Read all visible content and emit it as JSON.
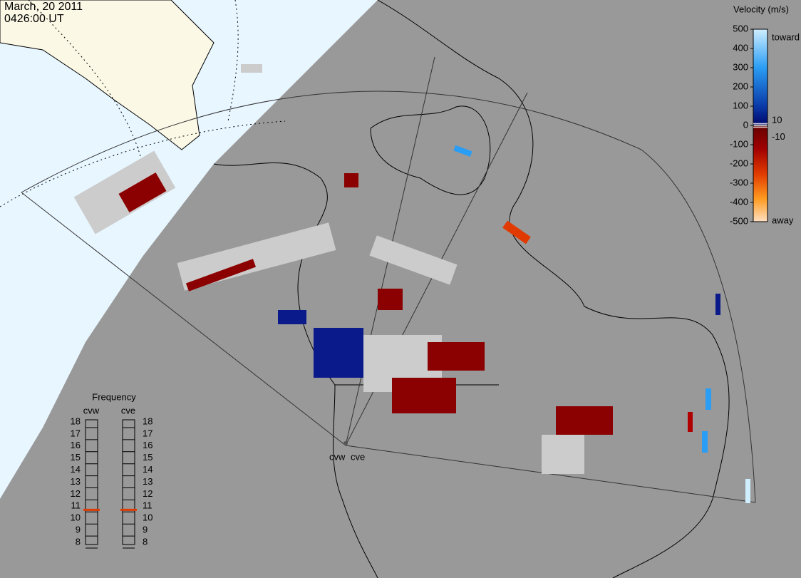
{
  "header": {
    "date": "March, 20 2011",
    "time": "0426:00 UT"
  },
  "velocity_scale": {
    "title": "Velocity (m/s)",
    "lim": [
      -500,
      500
    ],
    "ticks": [
      500,
      400,
      300,
      200,
      100,
      0,
      -100,
      -200,
      -300,
      -400,
      -500
    ],
    "inner_ticks": [
      10,
      -10
    ],
    "toward": "toward",
    "away": "away"
  },
  "frequency": {
    "title": "Frequency",
    "lim": [
      8,
      18
    ],
    "ticks": [
      18,
      17,
      16,
      15,
      14,
      13,
      12,
      11,
      10,
      9,
      8
    ],
    "radars": [
      {
        "name": "cvw",
        "value": 10.7
      },
      {
        "name": "cve",
        "value": 10.7
      }
    ]
  },
  "map": {
    "radar_labels": [
      "cvw",
      "cve"
    ]
  }
}
